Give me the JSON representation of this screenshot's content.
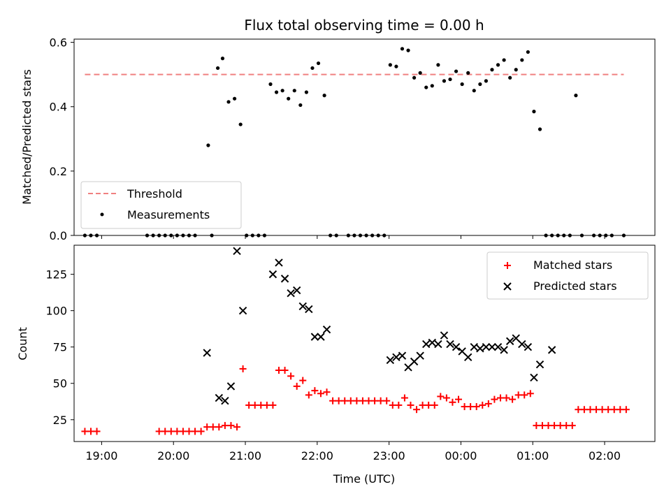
{
  "chart_data": [
    {
      "type": "scatter",
      "title": "Flux total observing time = 0.00 h",
      "ylabel": "Matched/Predicted stars",
      "xlabel": "",
      "ylim": [
        0,
        0.61
      ],
      "xlim": [
        "18:37",
        "02:42"
      ],
      "yticks": [
        0.0,
        0.2,
        0.4,
        0.6
      ],
      "ytick_labels": [
        "0.0",
        "0.2",
        "0.4",
        "0.6"
      ],
      "legend_loc": "lower left",
      "threshold": {
        "name": "Threshold",
        "y": 0.5,
        "x_range": [
          "18:46",
          "02:16"
        ],
        "color": "#f08080"
      },
      "measurements": {
        "name": "Measurements",
        "color": "#000000",
        "x": [
          "18:46",
          "18:51",
          "18:56",
          "19:38",
          "19:43",
          "19:48",
          "19:53",
          "19:58",
          "20:03",
          "20:08",
          "20:13",
          "20:18",
          "20:29",
          "20:32",
          "20:37",
          "20:41",
          "20:46",
          "20:51",
          "20:56",
          "21:01",
          "21:06",
          "21:11",
          "21:16",
          "21:21",
          "21:26",
          "21:31",
          "21:36",
          "21:41",
          "21:46",
          "21:51",
          "21:56",
          "22:01",
          "22:06",
          "22:11",
          "22:16",
          "22:26",
          "22:31",
          "22:36",
          "22:41",
          "22:46",
          "22:51",
          "22:56",
          "23:01",
          "23:06",
          "23:11",
          "23:16",
          "23:21",
          "23:26",
          "23:31",
          "23:36",
          "23:41",
          "23:46",
          "23:51",
          "23:56",
          "00:01",
          "00:06",
          "00:11",
          "00:16",
          "00:21",
          "00:26",
          "00:31",
          "00:36",
          "00:41",
          "00:46",
          "00:51",
          "00:56",
          "01:01",
          "01:06",
          "01:11",
          "01:16",
          "01:21",
          "01:26",
          "01:31",
          "01:36",
          "01:41",
          "01:51",
          "01:56",
          "02:01",
          "02:06",
          "02:16"
        ],
        "y": [
          0,
          0,
          0,
          0,
          0,
          0,
          0,
          0,
          0,
          0,
          0,
          0,
          0.28,
          0,
          0.52,
          0.55,
          0.415,
          0.425,
          0.345,
          0,
          0,
          0,
          0,
          0.47,
          0.445,
          0.45,
          0.425,
          0.45,
          0.405,
          0.445,
          0.52,
          0.535,
          0.435,
          0,
          0,
          0,
          0,
          0,
          0,
          0,
          0,
          0,
          0.53,
          0.525,
          0.58,
          0.575,
          0.49,
          0.505,
          0.46,
          0.465,
          0.53,
          0.48,
          0.485,
          0.51,
          0.47,
          0.505,
          0.45,
          0.47,
          0.48,
          0.515,
          0.53,
          0.545,
          0.49,
          0.515,
          0.545,
          0.57,
          0.385,
          0.33,
          0,
          0,
          0,
          0,
          0,
          0.435,
          0,
          0,
          0,
          0,
          0,
          0
        ]
      }
    },
    {
      "type": "scatter",
      "title": "",
      "ylabel": "Count",
      "xlabel": "Time (UTC)",
      "ylim": [
        10,
        145
      ],
      "xlim": [
        "18:37",
        "02:42"
      ],
      "yticks": [
        25,
        50,
        75,
        100,
        125
      ],
      "ytick_labels": [
        "25",
        "50",
        "75",
        "100",
        "125"
      ],
      "xticks": [
        "19:00",
        "20:00",
        "21:00",
        "22:00",
        "23:00",
        "00:00",
        "01:00",
        "02:00"
      ],
      "legend_loc": "upper right",
      "matched": {
        "name": "Matched stars",
        "color": "#ff0000",
        "x": [
          "18:46",
          "18:51",
          "18:56",
          "19:48",
          "19:53",
          "19:58",
          "20:03",
          "20:08",
          "20:13",
          "20:18",
          "20:23",
          "20:28",
          "20:33",
          "20:38",
          "20:43",
          "20:48",
          "20:53",
          "20:58",
          "21:03",
          "21:08",
          "21:13",
          "21:18",
          "21:23",
          "21:28",
          "21:33",
          "21:38",
          "21:43",
          "21:48",
          "21:53",
          "21:58",
          "22:03",
          "22:08",
          "22:13",
          "22:18",
          "22:23",
          "22:28",
          "22:33",
          "22:38",
          "22:43",
          "22:48",
          "22:53",
          "22:58",
          "23:03",
          "23:08",
          "23:13",
          "23:18",
          "23:23",
          "23:28",
          "23:33",
          "23:38",
          "23:43",
          "23:48",
          "23:53",
          "23:58",
          "00:03",
          "00:08",
          "00:13",
          "00:18",
          "00:23",
          "00:28",
          "00:33",
          "00:38",
          "00:43",
          "00:48",
          "00:53",
          "00:58",
          "01:03",
          "01:08",
          "01:13",
          "01:18",
          "01:23",
          "01:28",
          "01:33",
          "01:38",
          "01:43",
          "01:48",
          "01:53",
          "01:58",
          "02:03",
          "02:08",
          "02:13",
          "02:18"
        ],
        "y": [
          17,
          17,
          17,
          17,
          17,
          17,
          17,
          17,
          17,
          17,
          17,
          20,
          20,
          20,
          21,
          21,
          20,
          60,
          35,
          35,
          35,
          35,
          35,
          59,
          59,
          55,
          48,
          52,
          42,
          45,
          43,
          44,
          38,
          38,
          38,
          38,
          38,
          38,
          38,
          38,
          38,
          38,
          35,
          35,
          40,
          35,
          32,
          35,
          35,
          35,
          41,
          40,
          37,
          39,
          34,
          34,
          34,
          35,
          36,
          39,
          40,
          40,
          39,
          42,
          42,
          43,
          21,
          21,
          21,
          21,
          21,
          21,
          21,
          32,
          32,
          32,
          32,
          32,
          32,
          32,
          32,
          32
        ]
      },
      "predicted": {
        "name": "Predicted stars",
        "color": "#000000",
        "x": [
          "20:28",
          "20:38",
          "20:43",
          "20:48",
          "20:53",
          "20:58",
          "21:23",
          "21:28",
          "21:33",
          "21:38",
          "21:43",
          "21:48",
          "21:53",
          "21:58",
          "22:03",
          "22:08",
          "23:01",
          "23:06",
          "23:11",
          "23:16",
          "23:21",
          "23:26",
          "23:31",
          "23:36",
          "23:41",
          "23:46",
          "23:51",
          "23:56",
          "00:01",
          "00:06",
          "00:11",
          "00:16",
          "00:21",
          "00:26",
          "00:31",
          "00:36",
          "00:41",
          "00:46",
          "00:51",
          "00:56",
          "01:01",
          "01:06",
          "01:16"
        ],
        "y": [
          71,
          40,
          38,
          48,
          141,
          100,
          125,
          133,
          122,
          112,
          114,
          103,
          101,
          82,
          82,
          87,
          66,
          68,
          69,
          61,
          65,
          69,
          77,
          78,
          77,
          83,
          77,
          75,
          72,
          68,
          75,
          74,
          75,
          75,
          75,
          73,
          79,
          81,
          77,
          75,
          54,
          63,
          73
        ]
      }
    }
  ]
}
